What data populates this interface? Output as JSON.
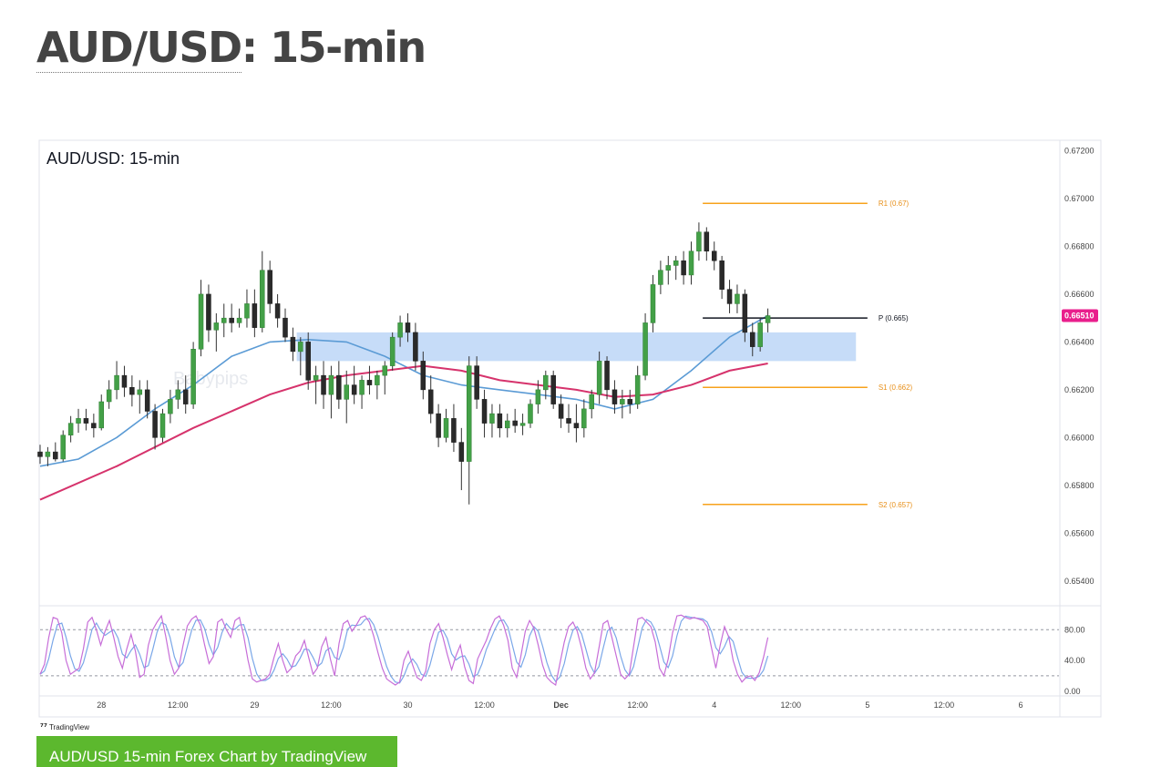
{
  "page": {
    "title_link": "AUD/USD",
    "title_rest": ": 15-min",
    "tv_brand": "TradingView",
    "credit_label": "AUD/USD 15-min Forex Chart by TradingView"
  },
  "chart_data": {
    "type": "candlestick",
    "title": "AUD/USD: 15-min",
    "watermark": "Babypips",
    "price_axis": {
      "ylim": [
        0.653,
        0.6724
      ],
      "ticks": [
        "0.67200",
        "0.67000",
        "0.66800",
        "0.66600",
        "0.66400",
        "0.66200",
        "0.66000",
        "0.65800",
        "0.65600",
        "0.65400"
      ],
      "tick_values": [
        0.672,
        0.67,
        0.668,
        0.666,
        0.664,
        0.662,
        0.66,
        0.658,
        0.656,
        0.654
      ]
    },
    "time_axis": {
      "labels": [
        "28",
        "12:00",
        "29",
        "12:00",
        "30",
        "12:00",
        "Dec",
        "12:00",
        "4",
        "12:00",
        "5",
        "12:00",
        "6"
      ],
      "bold": [
        false,
        false,
        false,
        false,
        false,
        false,
        true,
        false,
        false,
        false,
        false,
        false,
        false
      ],
      "xlim": [
        0,
        13.3
      ]
    },
    "current_price": {
      "label": "0.66510",
      "value": 0.6651,
      "color": "#e91e8c"
    },
    "pivot_levels": [
      {
        "label": "R1 (0.67)",
        "value": 0.6698,
        "color": "#f7a21b",
        "x": [
          8.65,
          10.8
        ]
      },
      {
        "label": "P (0.665)",
        "value": 0.665,
        "color": "#131722",
        "x": [
          8.65,
          10.8
        ]
      },
      {
        "label": "S1 (0.662)",
        "value": 0.6621,
        "color": "#f7a21b",
        "x": [
          8.65,
          10.8
        ]
      },
      {
        "label": "S2 (0.657)",
        "value": 0.6572,
        "color": "#f7a21b",
        "x": [
          8.65,
          10.8
        ]
      }
    ],
    "zone": {
      "from": 0.6632,
      "to": 0.6644,
      "x": [
        3.35,
        10.65
      ],
      "color": "#bcd6f7"
    },
    "candles": [
      {
        "x": 0.0,
        "o": 0.6594,
        "h": 0.6597,
        "l": 0.6589,
        "c": 0.6592
      },
      {
        "x": 0.1,
        "o": 0.6592,
        "h": 0.6596,
        "l": 0.6588,
        "c": 0.6594
      },
      {
        "x": 0.2,
        "o": 0.6594,
        "h": 0.6598,
        "l": 0.659,
        "c": 0.6591
      },
      {
        "x": 0.3,
        "o": 0.6591,
        "h": 0.6603,
        "l": 0.659,
        "c": 0.6601
      },
      {
        "x": 0.4,
        "o": 0.6601,
        "h": 0.6609,
        "l": 0.6598,
        "c": 0.6606
      },
      {
        "x": 0.5,
        "o": 0.6606,
        "h": 0.6612,
        "l": 0.6602,
        "c": 0.6608
      },
      {
        "x": 0.6,
        "o": 0.6608,
        "h": 0.6612,
        "l": 0.6603,
        "c": 0.6606
      },
      {
        "x": 0.7,
        "o": 0.6606,
        "h": 0.661,
        "l": 0.66,
        "c": 0.6604
      },
      {
        "x": 0.8,
        "o": 0.6604,
        "h": 0.6618,
        "l": 0.6603,
        "c": 0.6615
      },
      {
        "x": 0.9,
        "o": 0.6615,
        "h": 0.6624,
        "l": 0.6612,
        "c": 0.662
      },
      {
        "x": 1.0,
        "o": 0.662,
        "h": 0.6632,
        "l": 0.6616,
        "c": 0.6626
      },
      {
        "x": 1.1,
        "o": 0.6626,
        "h": 0.663,
        "l": 0.6617,
        "c": 0.6621
      },
      {
        "x": 1.2,
        "o": 0.6621,
        "h": 0.6626,
        "l": 0.6613,
        "c": 0.6618
      },
      {
        "x": 1.3,
        "o": 0.6618,
        "h": 0.6624,
        "l": 0.661,
        "c": 0.662
      },
      {
        "x": 1.4,
        "o": 0.662,
        "h": 0.6624,
        "l": 0.6608,
        "c": 0.6611
      },
      {
        "x": 1.5,
        "o": 0.6611,
        "h": 0.6614,
        "l": 0.6595,
        "c": 0.66
      },
      {
        "x": 1.6,
        "o": 0.66,
        "h": 0.6612,
        "l": 0.6598,
        "c": 0.661
      },
      {
        "x": 1.7,
        "o": 0.661,
        "h": 0.662,
        "l": 0.6606,
        "c": 0.6616
      },
      {
        "x": 1.8,
        "o": 0.6616,
        "h": 0.6624,
        "l": 0.6612,
        "c": 0.662
      },
      {
        "x": 1.9,
        "o": 0.662,
        "h": 0.6626,
        "l": 0.661,
        "c": 0.6614
      },
      {
        "x": 2.0,
        "o": 0.6614,
        "h": 0.664,
        "l": 0.6612,
        "c": 0.6637
      },
      {
        "x": 2.1,
        "o": 0.6637,
        "h": 0.6666,
        "l": 0.6634,
        "c": 0.666
      },
      {
        "x": 2.2,
        "o": 0.666,
        "h": 0.6664,
        "l": 0.664,
        "c": 0.6645
      },
      {
        "x": 2.3,
        "o": 0.6645,
        "h": 0.6652,
        "l": 0.6636,
        "c": 0.6648
      },
      {
        "x": 2.4,
        "o": 0.6648,
        "h": 0.6656,
        "l": 0.6642,
        "c": 0.665
      },
      {
        "x": 2.5,
        "o": 0.665,
        "h": 0.6656,
        "l": 0.6644,
        "c": 0.6648
      },
      {
        "x": 2.6,
        "o": 0.6648,
        "h": 0.6654,
        "l": 0.6646,
        "c": 0.665
      },
      {
        "x": 2.7,
        "o": 0.665,
        "h": 0.6662,
        "l": 0.6646,
        "c": 0.6656
      },
      {
        "x": 2.8,
        "o": 0.6656,
        "h": 0.6662,
        "l": 0.6642,
        "c": 0.6646
      },
      {
        "x": 2.9,
        "o": 0.6646,
        "h": 0.6678,
        "l": 0.6644,
        "c": 0.667
      },
      {
        "x": 3.0,
        "o": 0.667,
        "h": 0.6674,
        "l": 0.6652,
        "c": 0.6656
      },
      {
        "x": 3.1,
        "o": 0.6656,
        "h": 0.666,
        "l": 0.6646,
        "c": 0.665
      },
      {
        "x": 3.2,
        "o": 0.665,
        "h": 0.6654,
        "l": 0.664,
        "c": 0.6642
      },
      {
        "x": 3.3,
        "o": 0.6642,
        "h": 0.6646,
        "l": 0.6632,
        "c": 0.6636
      },
      {
        "x": 3.4,
        "o": 0.6636,
        "h": 0.6642,
        "l": 0.6626,
        "c": 0.664
      },
      {
        "x": 3.5,
        "o": 0.664,
        "h": 0.6644,
        "l": 0.662,
        "c": 0.6624
      },
      {
        "x": 3.6,
        "o": 0.6624,
        "h": 0.663,
        "l": 0.6614,
        "c": 0.6626
      },
      {
        "x": 3.7,
        "o": 0.6626,
        "h": 0.6632,
        "l": 0.6612,
        "c": 0.6618
      },
      {
        "x": 3.8,
        "o": 0.6618,
        "h": 0.663,
        "l": 0.6608,
        "c": 0.6626
      },
      {
        "x": 3.9,
        "o": 0.6626,
        "h": 0.6632,
        "l": 0.6612,
        "c": 0.6616
      },
      {
        "x": 4.0,
        "o": 0.6616,
        "h": 0.6628,
        "l": 0.6606,
        "c": 0.6622
      },
      {
        "x": 4.1,
        "o": 0.6622,
        "h": 0.663,
        "l": 0.6614,
        "c": 0.6618
      },
      {
        "x": 4.2,
        "o": 0.6618,
        "h": 0.6626,
        "l": 0.6612,
        "c": 0.6624
      },
      {
        "x": 4.3,
        "o": 0.6624,
        "h": 0.663,
        "l": 0.6618,
        "c": 0.6622
      },
      {
        "x": 4.4,
        "o": 0.6622,
        "h": 0.6628,
        "l": 0.6616,
        "c": 0.6626
      },
      {
        "x": 4.5,
        "o": 0.6626,
        "h": 0.6632,
        "l": 0.6618,
        "c": 0.663
      },
      {
        "x": 4.6,
        "o": 0.663,
        "h": 0.6644,
        "l": 0.6628,
        "c": 0.6642
      },
      {
        "x": 4.7,
        "o": 0.6642,
        "h": 0.6651,
        "l": 0.6638,
        "c": 0.6648
      },
      {
        "x": 4.8,
        "o": 0.6648,
        "h": 0.6652,
        "l": 0.664,
        "c": 0.6644
      },
      {
        "x": 4.9,
        "o": 0.6644,
        "h": 0.6648,
        "l": 0.6628,
        "c": 0.6632
      },
      {
        "x": 5.0,
        "o": 0.6632,
        "h": 0.6636,
        "l": 0.6616,
        "c": 0.662
      },
      {
        "x": 5.1,
        "o": 0.662,
        "h": 0.6626,
        "l": 0.6606,
        "c": 0.661
      },
      {
        "x": 5.2,
        "o": 0.661,
        "h": 0.6614,
        "l": 0.6596,
        "c": 0.66
      },
      {
        "x": 5.3,
        "o": 0.66,
        "h": 0.6612,
        "l": 0.6598,
        "c": 0.6608
      },
      {
        "x": 5.4,
        "o": 0.6608,
        "h": 0.6614,
        "l": 0.6594,
        "c": 0.6598
      },
      {
        "x": 5.5,
        "o": 0.6598,
        "h": 0.6604,
        "l": 0.6578,
        "c": 0.659
      },
      {
        "x": 5.6,
        "o": 0.659,
        "h": 0.6634,
        "l": 0.6572,
        "c": 0.663
      },
      {
        "x": 5.7,
        "o": 0.663,
        "h": 0.6634,
        "l": 0.6612,
        "c": 0.6616
      },
      {
        "x": 5.8,
        "o": 0.6616,
        "h": 0.662,
        "l": 0.66,
        "c": 0.6606
      },
      {
        "x": 5.9,
        "o": 0.6606,
        "h": 0.6614,
        "l": 0.66,
        "c": 0.661
      },
      {
        "x": 6.0,
        "o": 0.661,
        "h": 0.6614,
        "l": 0.66,
        "c": 0.6604
      },
      {
        "x": 6.1,
        "o": 0.6604,
        "h": 0.661,
        "l": 0.66,
        "c": 0.6607
      },
      {
        "x": 6.2,
        "o": 0.6607,
        "h": 0.6612,
        "l": 0.6602,
        "c": 0.6605
      },
      {
        "x": 6.3,
        "o": 0.6605,
        "h": 0.661,
        "l": 0.6601,
        "c": 0.6606
      },
      {
        "x": 6.4,
        "o": 0.6606,
        "h": 0.6616,
        "l": 0.6604,
        "c": 0.6614
      },
      {
        "x": 6.5,
        "o": 0.6614,
        "h": 0.6624,
        "l": 0.661,
        "c": 0.662
      },
      {
        "x": 6.6,
        "o": 0.662,
        "h": 0.6628,
        "l": 0.6616,
        "c": 0.6626
      },
      {
        "x": 6.7,
        "o": 0.6626,
        "h": 0.6628,
        "l": 0.6612,
        "c": 0.6614
      },
      {
        "x": 6.8,
        "o": 0.6614,
        "h": 0.6618,
        "l": 0.6604,
        "c": 0.6608
      },
      {
        "x": 6.9,
        "o": 0.6608,
        "h": 0.6614,
        "l": 0.6602,
        "c": 0.6606
      },
      {
        "x": 7.0,
        "o": 0.6606,
        "h": 0.6614,
        "l": 0.6598,
        "c": 0.6604
      },
      {
        "x": 7.1,
        "o": 0.6604,
        "h": 0.6616,
        "l": 0.66,
        "c": 0.6612
      },
      {
        "x": 7.2,
        "o": 0.6612,
        "h": 0.662,
        "l": 0.6608,
        "c": 0.6618
      },
      {
        "x": 7.3,
        "o": 0.6618,
        "h": 0.6636,
        "l": 0.6614,
        "c": 0.6632
      },
      {
        "x": 7.4,
        "o": 0.6632,
        "h": 0.6634,
        "l": 0.6616,
        "c": 0.662
      },
      {
        "x": 7.5,
        "o": 0.662,
        "h": 0.6624,
        "l": 0.661,
        "c": 0.6614
      },
      {
        "x": 7.6,
        "o": 0.6614,
        "h": 0.662,
        "l": 0.6608,
        "c": 0.6616
      },
      {
        "x": 7.7,
        "o": 0.6616,
        "h": 0.662,
        "l": 0.661,
        "c": 0.6614
      },
      {
        "x": 7.8,
        "o": 0.6614,
        "h": 0.663,
        "l": 0.6612,
        "c": 0.6626
      },
      {
        "x": 7.9,
        "o": 0.6626,
        "h": 0.6652,
        "l": 0.6624,
        "c": 0.6648
      },
      {
        "x": 8.0,
        "o": 0.6648,
        "h": 0.6668,
        "l": 0.6644,
        "c": 0.6664
      },
      {
        "x": 8.1,
        "o": 0.6664,
        "h": 0.6674,
        "l": 0.666,
        "c": 0.667
      },
      {
        "x": 8.2,
        "o": 0.667,
        "h": 0.6676,
        "l": 0.6664,
        "c": 0.6672
      },
      {
        "x": 8.3,
        "o": 0.6672,
        "h": 0.6676,
        "l": 0.6666,
        "c": 0.6674
      },
      {
        "x": 8.4,
        "o": 0.6674,
        "h": 0.6678,
        "l": 0.6664,
        "c": 0.6668
      },
      {
        "x": 8.5,
        "o": 0.6668,
        "h": 0.6682,
        "l": 0.6664,
        "c": 0.6678
      },
      {
        "x": 8.6,
        "o": 0.6678,
        "h": 0.669,
        "l": 0.6674,
        "c": 0.6686
      },
      {
        "x": 8.7,
        "o": 0.6686,
        "h": 0.6688,
        "l": 0.6674,
        "c": 0.6678
      },
      {
        "x": 8.8,
        "o": 0.6678,
        "h": 0.6682,
        "l": 0.667,
        "c": 0.6674
      },
      {
        "x": 8.9,
        "o": 0.6674,
        "h": 0.6676,
        "l": 0.6658,
        "c": 0.6662
      },
      {
        "x": 9.0,
        "o": 0.6662,
        "h": 0.6666,
        "l": 0.6652,
        "c": 0.6656
      },
      {
        "x": 9.1,
        "o": 0.6656,
        "h": 0.6664,
        "l": 0.6652,
        "c": 0.666
      },
      {
        "x": 9.2,
        "o": 0.666,
        "h": 0.6662,
        "l": 0.664,
        "c": 0.6644
      },
      {
        "x": 9.3,
        "o": 0.6644,
        "h": 0.6648,
        "l": 0.6634,
        "c": 0.6638
      },
      {
        "x": 9.4,
        "o": 0.6638,
        "h": 0.665,
        "l": 0.6636,
        "c": 0.6648
      },
      {
        "x": 9.5,
        "o": 0.6648,
        "h": 0.6654,
        "l": 0.6644,
        "c": 0.6651
      }
    ],
    "ma_blue": {
      "color": "#5b9bd5",
      "points": [
        [
          0,
          0.6588
        ],
        [
          0.5,
          0.6591
        ],
        [
          1.0,
          0.66
        ],
        [
          1.5,
          0.6612
        ],
        [
          2.0,
          0.6622
        ],
        [
          2.5,
          0.6634
        ],
        [
          3.0,
          0.664
        ],
        [
          3.5,
          0.6641
        ],
        [
          4.0,
          0.664
        ],
        [
          4.5,
          0.6634
        ],
        [
          5.0,
          0.6626
        ],
        [
          5.5,
          0.6622
        ],
        [
          6.0,
          0.662
        ],
        [
          6.5,
          0.6618
        ],
        [
          7.0,
          0.6616
        ],
        [
          7.5,
          0.6612
        ],
        [
          8.0,
          0.6616
        ],
        [
          8.5,
          0.6628
        ],
        [
          9.0,
          0.6642
        ],
        [
          9.5,
          0.6651
        ]
      ]
    },
    "ma_pink": {
      "color": "#d6336c",
      "points": [
        [
          0,
          0.6574
        ],
        [
          1.0,
          0.6588
        ],
        [
          2.0,
          0.6604
        ],
        [
          3.0,
          0.6618
        ],
        [
          3.5,
          0.6623
        ],
        [
          4.0,
          0.6626
        ],
        [
          4.5,
          0.6628
        ],
        [
          5.0,
          0.663
        ],
        [
          5.5,
          0.6628
        ],
        [
          6.0,
          0.6624
        ],
        [
          7.0,
          0.662
        ],
        [
          7.5,
          0.6617
        ],
        [
          8.0,
          0.6618
        ],
        [
          8.5,
          0.6622
        ],
        [
          9.0,
          0.6628
        ],
        [
          9.5,
          0.6631
        ]
      ]
    },
    "oscillator": {
      "ticks": [
        "80.00",
        "40.00",
        "0.00"
      ],
      "tick_values": [
        80,
        40,
        0
      ],
      "ylim": [
        -5,
        110
      ],
      "levels": [
        80,
        20
      ],
      "k_color": "#c76ed8",
      "d_color": "#7aa7e8",
      "k": [
        22,
        35,
        70,
        96,
        94,
        76,
        40,
        22,
        26,
        30,
        55,
        90,
        96,
        80,
        60,
        78,
        92,
        70,
        45,
        30,
        55,
        74,
        52,
        18,
        22,
        60,
        80,
        90,
        98,
        72,
        40,
        22,
        30,
        60,
        85,
        94,
        98,
        86,
        60,
        36,
        45,
        90,
        94,
        80,
        70,
        92,
        96,
        72,
        40,
        16,
        12,
        14,
        16,
        22,
        44,
        62,
        40,
        24,
        30,
        46,
        52,
        66,
        44,
        22,
        30,
        58,
        70,
        42,
        20,
        62,
        88,
        92,
        78,
        86,
        96,
        98,
        90,
        72,
        50,
        30,
        16,
        12,
        8,
        12,
        40,
        52,
        34,
        18,
        14,
        26,
        62,
        80,
        88,
        70,
        48,
        28,
        46,
        60,
        32,
        14,
        10,
        42,
        54,
        66,
        82,
        94,
        98,
        86,
        66,
        30,
        18,
        46,
        78,
        92,
        82,
        60,
        34,
        18,
        12,
        8,
        36,
        64,
        84,
        90,
        78,
        56,
        30,
        16,
        24,
        56,
        88,
        92,
        70,
        46,
        22,
        16,
        22,
        58,
        94,
        96,
        90,
        84,
        64,
        30,
        20,
        42,
        76,
        98,
        99,
        96,
        94,
        96,
        94,
        92,
        84,
        56,
        30,
        60,
        84,
        70,
        40,
        22,
        12,
        18,
        20,
        14,
        24,
        44,
        70
      ]
    }
  }
}
